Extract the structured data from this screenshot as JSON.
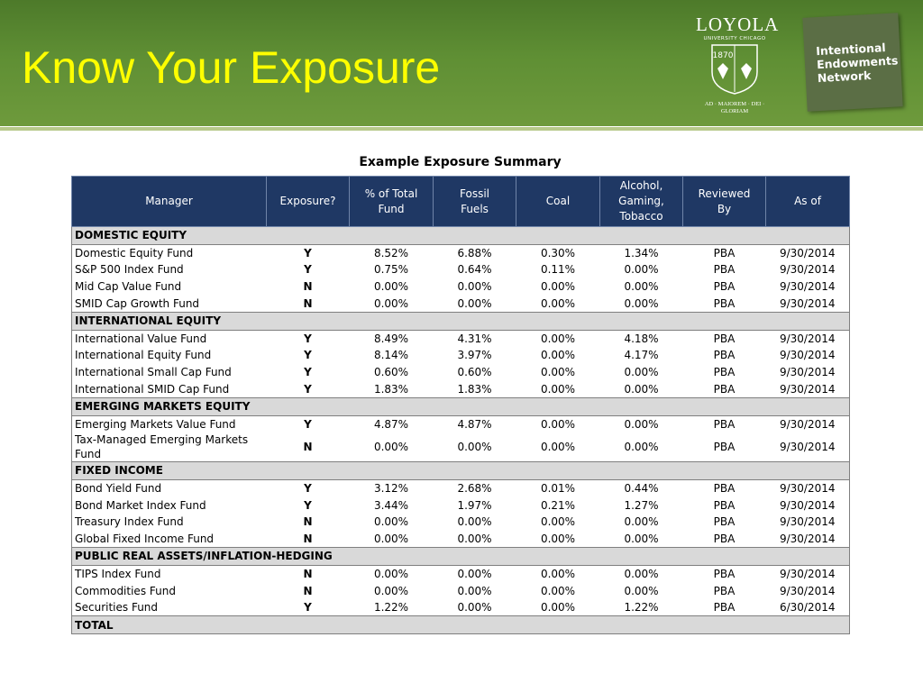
{
  "header": {
    "title": "Know Your Exposure"
  },
  "logos": {
    "loyola": "LOYOLA",
    "university": "UNIVERSITY CHICAGO",
    "year": "1870",
    "motto": "AD · MAIOREM · DEI · GLORIAM",
    "ien": "Intentional Endowments Network"
  },
  "table": {
    "title": "Example Exposure Summary",
    "columns": [
      "Manager",
      "Exposure?",
      "% of Total Fund",
      "Fossil Fuels",
      "Coal",
      "Alcohol, Gaming, Tobacco",
      "Reviewed By",
      "As of"
    ],
    "sections": [
      {
        "name": "DOMESTIC EQUITY",
        "rows": [
          [
            "Domestic Equity Fund",
            "Y",
            "8.52%",
            "6.88%",
            "0.30%",
            "1.34%",
            "PBA",
            "9/30/2014"
          ],
          [
            "S&P 500 Index Fund",
            "Y",
            "0.75%",
            "0.64%",
            "0.11%",
            "0.00%",
            "PBA",
            "9/30/2014"
          ],
          [
            "Mid Cap Value Fund",
            "N",
            "0.00%",
            "0.00%",
            "0.00%",
            "0.00%",
            "PBA",
            "9/30/2014"
          ],
          [
            "SMID Cap Growth Fund",
            "N",
            "0.00%",
            "0.00%",
            "0.00%",
            "0.00%",
            "PBA",
            "9/30/2014"
          ]
        ]
      },
      {
        "name": "INTERNATIONAL EQUITY",
        "rows": [
          [
            "International Value Fund",
            "Y",
            "8.49%",
            "4.31%",
            "0.00%",
            "4.18%",
            "PBA",
            "9/30/2014"
          ],
          [
            "International Equity Fund",
            "Y",
            "8.14%",
            "3.97%",
            "0.00%",
            "4.17%",
            "PBA",
            "9/30/2014"
          ],
          [
            "International Small Cap Fund",
            "Y",
            "0.60%",
            "0.60%",
            "0.00%",
            "0.00%",
            "PBA",
            "9/30/2014"
          ],
          [
            "International SMID Cap Fund",
            "Y",
            "1.83%",
            "1.83%",
            "0.00%",
            "0.00%",
            "PBA",
            "9/30/2014"
          ]
        ]
      },
      {
        "name": "EMERGING MARKETS EQUITY",
        "rows": [
          [
            "Emerging Markets Value Fund",
            "Y",
            "4.87%",
            "4.87%",
            "0.00%",
            "0.00%",
            "PBA",
            "9/30/2014"
          ],
          [
            "Tax-Managed Emerging Markets Fund",
            "N",
            "0.00%",
            "0.00%",
            "0.00%",
            "0.00%",
            "PBA",
            "9/30/2014"
          ]
        ]
      },
      {
        "name": "FIXED INCOME",
        "rows": [
          [
            "Bond Yield Fund",
            "Y",
            "3.12%",
            "2.68%",
            "0.01%",
            "0.44%",
            "PBA",
            "9/30/2014"
          ],
          [
            "Bond Market Index Fund",
            "Y",
            "3.44%",
            "1.97%",
            "0.21%",
            "1.27%",
            "PBA",
            "9/30/2014"
          ],
          [
            "Treasury Index Fund",
            "N",
            "0.00%",
            "0.00%",
            "0.00%",
            "0.00%",
            "PBA",
            "9/30/2014"
          ],
          [
            "Global Fixed Income Fund",
            "N",
            "0.00%",
            "0.00%",
            "0.00%",
            "0.00%",
            "PBA",
            "9/30/2014"
          ]
        ]
      },
      {
        "name": "PUBLIC REAL ASSETS/INFLATION-HEDGING",
        "rows": [
          [
            "TIPS Index Fund",
            "N",
            "0.00%",
            "0.00%",
            "0.00%",
            "0.00%",
            "PBA",
            "9/30/2014"
          ],
          [
            "Commodities Fund",
            "N",
            "0.00%",
            "0.00%",
            "0.00%",
            "0.00%",
            "PBA",
            "9/30/2014"
          ],
          [
            "Securities Fund",
            "Y",
            "1.22%",
            "0.00%",
            "0.00%",
            "1.22%",
            "PBA",
            "6/30/2014"
          ]
        ]
      }
    ],
    "total": "TOTAL"
  }
}
